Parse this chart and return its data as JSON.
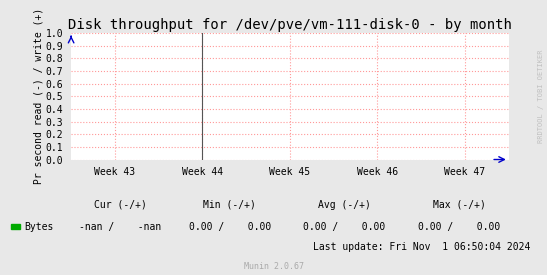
{
  "title": "Disk throughput for /dev/pve/vm-111-disk-0 - by month",
  "ylabel": "Pr second read (-) / write (+)",
  "background_color": "#e8e8e8",
  "plot_bg_color": "#ffffff",
  "grid_color": "#ff9999",
  "ylim": [
    0.0,
    1.0
  ],
  "yticks": [
    0.0,
    0.1,
    0.2,
    0.3,
    0.4,
    0.5,
    0.6,
    0.7,
    0.8,
    0.9,
    1.0
  ],
  "xtick_labels": [
    "Week 43",
    "Week 44",
    "Week 45",
    "Week 46",
    "Week 47"
  ],
  "xtick_positions": [
    0,
    1,
    2,
    3,
    4
  ],
  "vertical_line_x": 1,
  "rrdtool_label": "RRDTOOL / TOBI OETIKER",
  "legend_color": "#00aa00",
  "legend_label": "Bytes",
  "cur_label": "Cur (-/+)",
  "cur_value": "-nan /    -nan",
  "min_label": "Min (-/+)",
  "min_value": "0.00 /    0.00",
  "avg_label": "Avg (-/+)",
  "avg_value": "0.00 /    0.00",
  "max_label": "Max (-/+)",
  "max_value": "0.00 /    0.00",
  "last_update": "Last update: Fri Nov  1 06:50:04 2024",
  "munin_label": "Munin 2.0.67",
  "title_fontsize": 10,
  "axis_fontsize": 7,
  "legend_fontsize": 7,
  "tick_fontsize": 7,
  "rrd_fontsize": 5
}
